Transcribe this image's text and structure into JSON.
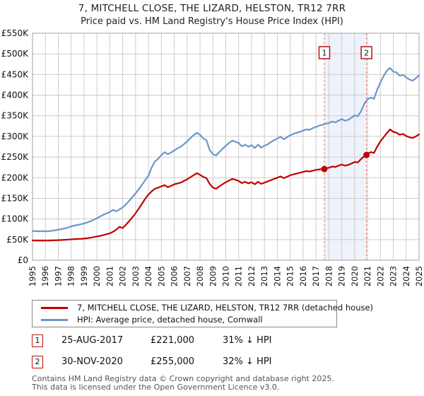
{
  "chart_data": {
    "type": "line",
    "title": "7, MITCHELL CLOSE, THE LIZARD, HELSTON, TR12 7RR",
    "subtitle": "Price paid vs. HM Land Registry's House Price Index (HPI)",
    "xlim": [
      1995,
      2025
    ],
    "ylim_gbp_k": [
      0,
      550
    ],
    "y_tick_step_gbp_k": 50,
    "grid": true,
    "legend_position": "bottom",
    "y_ticks": [
      "£0",
      "£50K",
      "£100K",
      "£150K",
      "£200K",
      "£250K",
      "£300K",
      "£350K",
      "£400K",
      "£450K",
      "£500K",
      "£550K"
    ],
    "x_ticks": [
      "1995",
      "1996",
      "1997",
      "1998",
      "1999",
      "2000",
      "2001",
      "2002",
      "2003",
      "2004",
      "2005",
      "2006",
      "2007",
      "2008",
      "2009",
      "2010",
      "2011",
      "2012",
      "2013",
      "2014",
      "2015",
      "2016",
      "2017",
      "2018",
      "2019",
      "2020",
      "2021",
      "2022",
      "2023",
      "2024",
      "2025"
    ],
    "x_start": 1995,
    "x_step": 0.25,
    "series": [
      {
        "name": "7, MITCHELL CLOSE, THE LIZARD, HELSTON, TR12 7RR (detached house)",
        "color": "#c00000",
        "values_gbp_k": [
          48,
          47.7,
          47.5,
          47.7,
          47.5,
          47.7,
          48,
          48.3,
          48.7,
          49,
          49.5,
          50,
          50.5,
          51,
          51.5,
          52,
          52.5,
          53.5,
          54.5,
          56,
          57.5,
          59,
          61,
          63,
          65,
          69,
          74,
          81,
          78,
          86,
          95,
          104,
          114,
          125,
          137,
          149,
          159,
          167,
          173,
          176,
          179,
          182,
          177,
          180,
          184,
          186,
          188,
          192,
          196,
          201,
          206,
          211,
          207,
          202,
          199,
          185,
          176,
          173,
          179,
          184,
          189,
          193,
          197,
          195,
          192,
          187,
          190,
          186,
          189,
          184,
          190,
          185,
          188,
          191,
          194,
          197,
          200,
          203,
          199,
          202,
          206,
          208,
          210,
          212,
          214,
          216,
          215,
          217,
          219,
          220,
          221,
          223,
          224,
          227,
          226,
          229,
          232,
          229,
          231,
          234,
          238,
          237,
          245,
          252,
          258,
          262,
          260,
          275,
          288,
          298,
          308,
          317,
          311,
          309,
          304,
          306,
          301,
          298,
          296,
          300,
          305
        ]
      },
      {
        "name": "HPI: Average price, detached house, Cornwall",
        "color": "#6b96c8",
        "values_gbp_k": [
          71,
          70.5,
          70,
          70.5,
          70,
          70.5,
          71.5,
          72.5,
          74,
          75.5,
          77,
          79,
          82,
          84,
          85.5,
          87,
          89,
          91.5,
          94.5,
          98,
          102,
          106,
          110,
          113.5,
          117,
          122,
          118.5,
          123,
          128,
          135,
          144,
          153,
          162,
          172,
          183,
          194,
          205,
          225,
          239,
          246,
          255,
          262,
          257,
          261,
          266,
          271,
          275,
          281,
          288,
          296,
          303,
          309,
          304,
          295,
          291,
          267,
          257,
          254,
          262,
          270,
          277,
          284,
          290,
          287,
          284,
          276,
          280,
          275,
          279,
          272,
          280,
          273,
          277,
          281,
          286,
          291,
          295,
          299,
          293,
          298,
          303,
          306,
          309,
          311,
          314,
          317,
          316,
          320,
          323,
          326,
          328,
          331,
          332,
          336,
          334,
          338,
          342,
          338,
          340,
          345,
          351,
          349,
          361,
          379,
          390,
          394,
          391,
          413,
          431,
          446,
          459,
          466,
          457,
          455,
          447,
          449,
          443,
          438,
          435,
          441,
          448
        ]
      }
    ],
    "sales": [
      {
        "marker": "1",
        "date": "25-AUG-2017",
        "price": "£221,000",
        "hpi_note": "31% ↓ HPI",
        "x_year": 2017.65,
        "value_gbp_k": 221
      },
      {
        "marker": "2",
        "date": "30-NOV-2020",
        "price": "£255,000",
        "hpi_note": "32% ↓ HPI",
        "x_year": 2020.92,
        "value_gbp_k": 255
      }
    ],
    "colors": {
      "band": "#edf2fb",
      "grid": "#cccccc",
      "border": "#a0a0a0",
      "dashed_line": "#ee8888",
      "marker_border": "#bb1111",
      "dot": "#c00000",
      "tick_text": "#111111"
    }
  },
  "footer": {
    "line1": "Contains HM Land Registry data © Crown copyright and database right 2025.",
    "line2": "This data is licensed under the Open Government Licence v3.0."
  }
}
